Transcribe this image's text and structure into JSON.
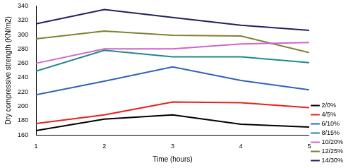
{
  "chart_data": {
    "type": "line",
    "x_label": "Time (hours)",
    "y_label": "Dry compressive strength (KN/m2)",
    "x": [
      1,
      2,
      3,
      4,
      5
    ],
    "xlim": [
      1,
      5
    ],
    "xticks": [
      1,
      2,
      3,
      4,
      5
    ],
    "ylim": [
      160,
      340
    ],
    "yticks": [
      160,
      180,
      200,
      220,
      240,
      260,
      280,
      300,
      320,
      340
    ],
    "grid": false,
    "legend": "right",
    "series": [
      {
        "name": "2/0%",
        "color": "#000000",
        "values": [
          166,
          182,
          188,
          175,
          171
        ]
      },
      {
        "name": "4/5%",
        "color": "#e8201b",
        "values": [
          176,
          188,
          206,
          205,
          198
        ]
      },
      {
        "name": "6/10%",
        "color": "#3163b8",
        "values": [
          216,
          235,
          255,
          236,
          223
        ]
      },
      {
        "name": "8/15%",
        "color": "#1e8a8c",
        "values": [
          249,
          278,
          269,
          269,
          261
        ]
      },
      {
        "name": "10/20%",
        "color": "#cc66cc",
        "values": [
          260,
          280,
          280,
          287,
          289
        ]
      },
      {
        "name": "12/25%",
        "color": "#808032",
        "values": [
          294,
          305,
          299,
          298,
          275
        ]
      },
      {
        "name": "14/30%",
        "color": "#202060",
        "values": [
          315,
          335,
          324,
          313,
          306
        ]
      }
    ]
  }
}
